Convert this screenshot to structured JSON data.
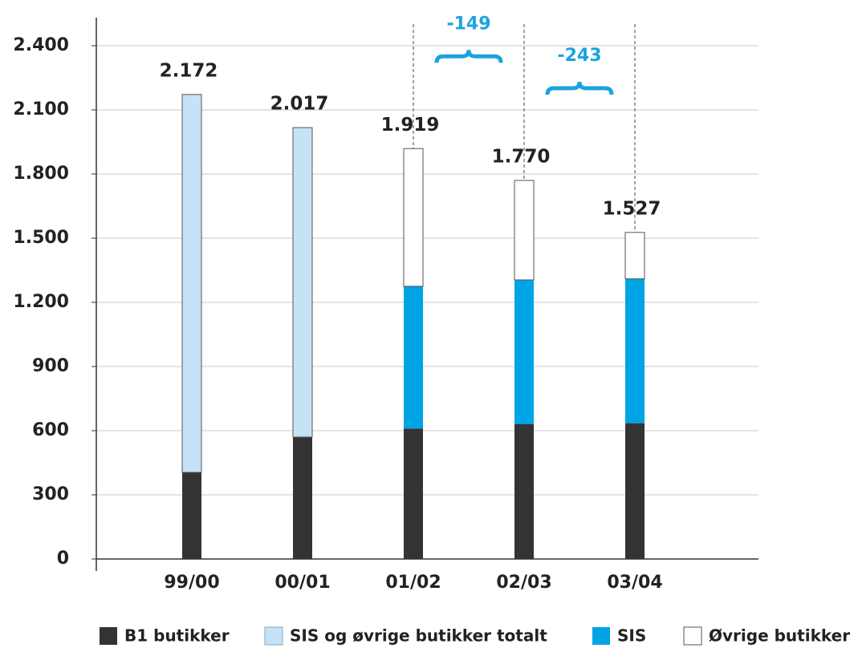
{
  "chart_data": {
    "type": "stacked_bar",
    "categories": [
      "99/00",
      "00/01",
      "01/02",
      "02/03",
      "03/04"
    ],
    "series": [
      {
        "name": "B1 butikker",
        "color": "#333333",
        "values": [
          405,
          570,
          610,
          630,
          635
        ]
      },
      {
        "name": "SIS og øvrige butikker totalt",
        "color": "#c6e2f7",
        "values": [
          1767,
          1447,
          null,
          null,
          null
        ]
      },
      {
        "name": "SIS",
        "color": "#00a4e4",
        "values": [
          null,
          null,
          665,
          675,
          675
        ]
      },
      {
        "name": "Øvrige butikker",
        "color": "#ffffff",
        "values": [
          null,
          null,
          644,
          465,
          217
        ]
      }
    ],
    "totals": {
      "values": [
        2172,
        2017,
        1919,
        1770,
        1527
      ],
      "value_labels": [
        "2.172",
        "2.017",
        "1.919",
        "1.770",
        "1.527"
      ]
    },
    "annotations": [
      "-149",
      "-243"
    ],
    "ylim": [
      0,
      2400
    ],
    "yticks": [
      0,
      300,
      600,
      900,
      {
        "value": 1200,
        "label": "1.200"
      },
      {
        "value": 1500,
        "label": "1.500"
      },
      {
        "value": 1800,
        "label": "1.800"
      },
      {
        "value": 2100,
        "label": "2.100"
      },
      {
        "value": 2400,
        "label": "2.400"
      }
    ],
    "grid": true,
    "legend": "bottom"
  }
}
